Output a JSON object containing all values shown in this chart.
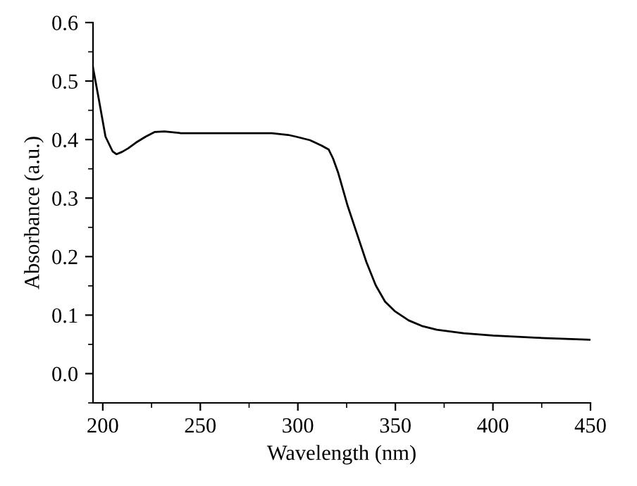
{
  "chart_data": {
    "type": "line",
    "xlabel": "Wavelength (nm)",
    "ylabel": "Absorbance (a.u.)",
    "xlim": [
      195,
      450
    ],
    "xticks": [
      200,
      250,
      300,
      350,
      400,
      450
    ],
    "ylim": [
      -0.05,
      0.6
    ],
    "yticks": [
      {
        "value": 0,
        "label": "0.0"
      },
      0.1,
      0.2,
      0.3,
      0.4,
      0.5,
      0.6
    ],
    "marker": "none",
    "line_style": "solid",
    "series": [
      {
        "color": "#000000",
        "x": [
          195,
          197.8,
          201.4,
          205,
          207,
          209.9,
          213,
          217.1,
          222,
          226.7,
          231.6,
          240,
          250,
          262.9,
          275,
          286.7,
          295,
          299,
          306.2,
          312,
          315.8,
          318,
          320.7,
          325.5,
          330.3,
          335.1,
          339.9,
          344.7,
          349.6,
          356.8,
          364,
          371.2,
          385,
          400,
          425,
          450
        ],
        "values": [
          0.523,
          0.472,
          0.405,
          0.38,
          0.375,
          0.379,
          0.385,
          0.395,
          0.405,
          0.413,
          0.414,
          0.411,
          0.411,
          0.411,
          0.411,
          0.411,
          0.408,
          0.405,
          0.399,
          0.39,
          0.383,
          0.368,
          0.343,
          0.287,
          0.239,
          0.191,
          0.151,
          0.123,
          0.107,
          0.091,
          0.081,
          0.075,
          0.069,
          0.065,
          0.061,
          0.058
        ]
      }
    ]
  }
}
